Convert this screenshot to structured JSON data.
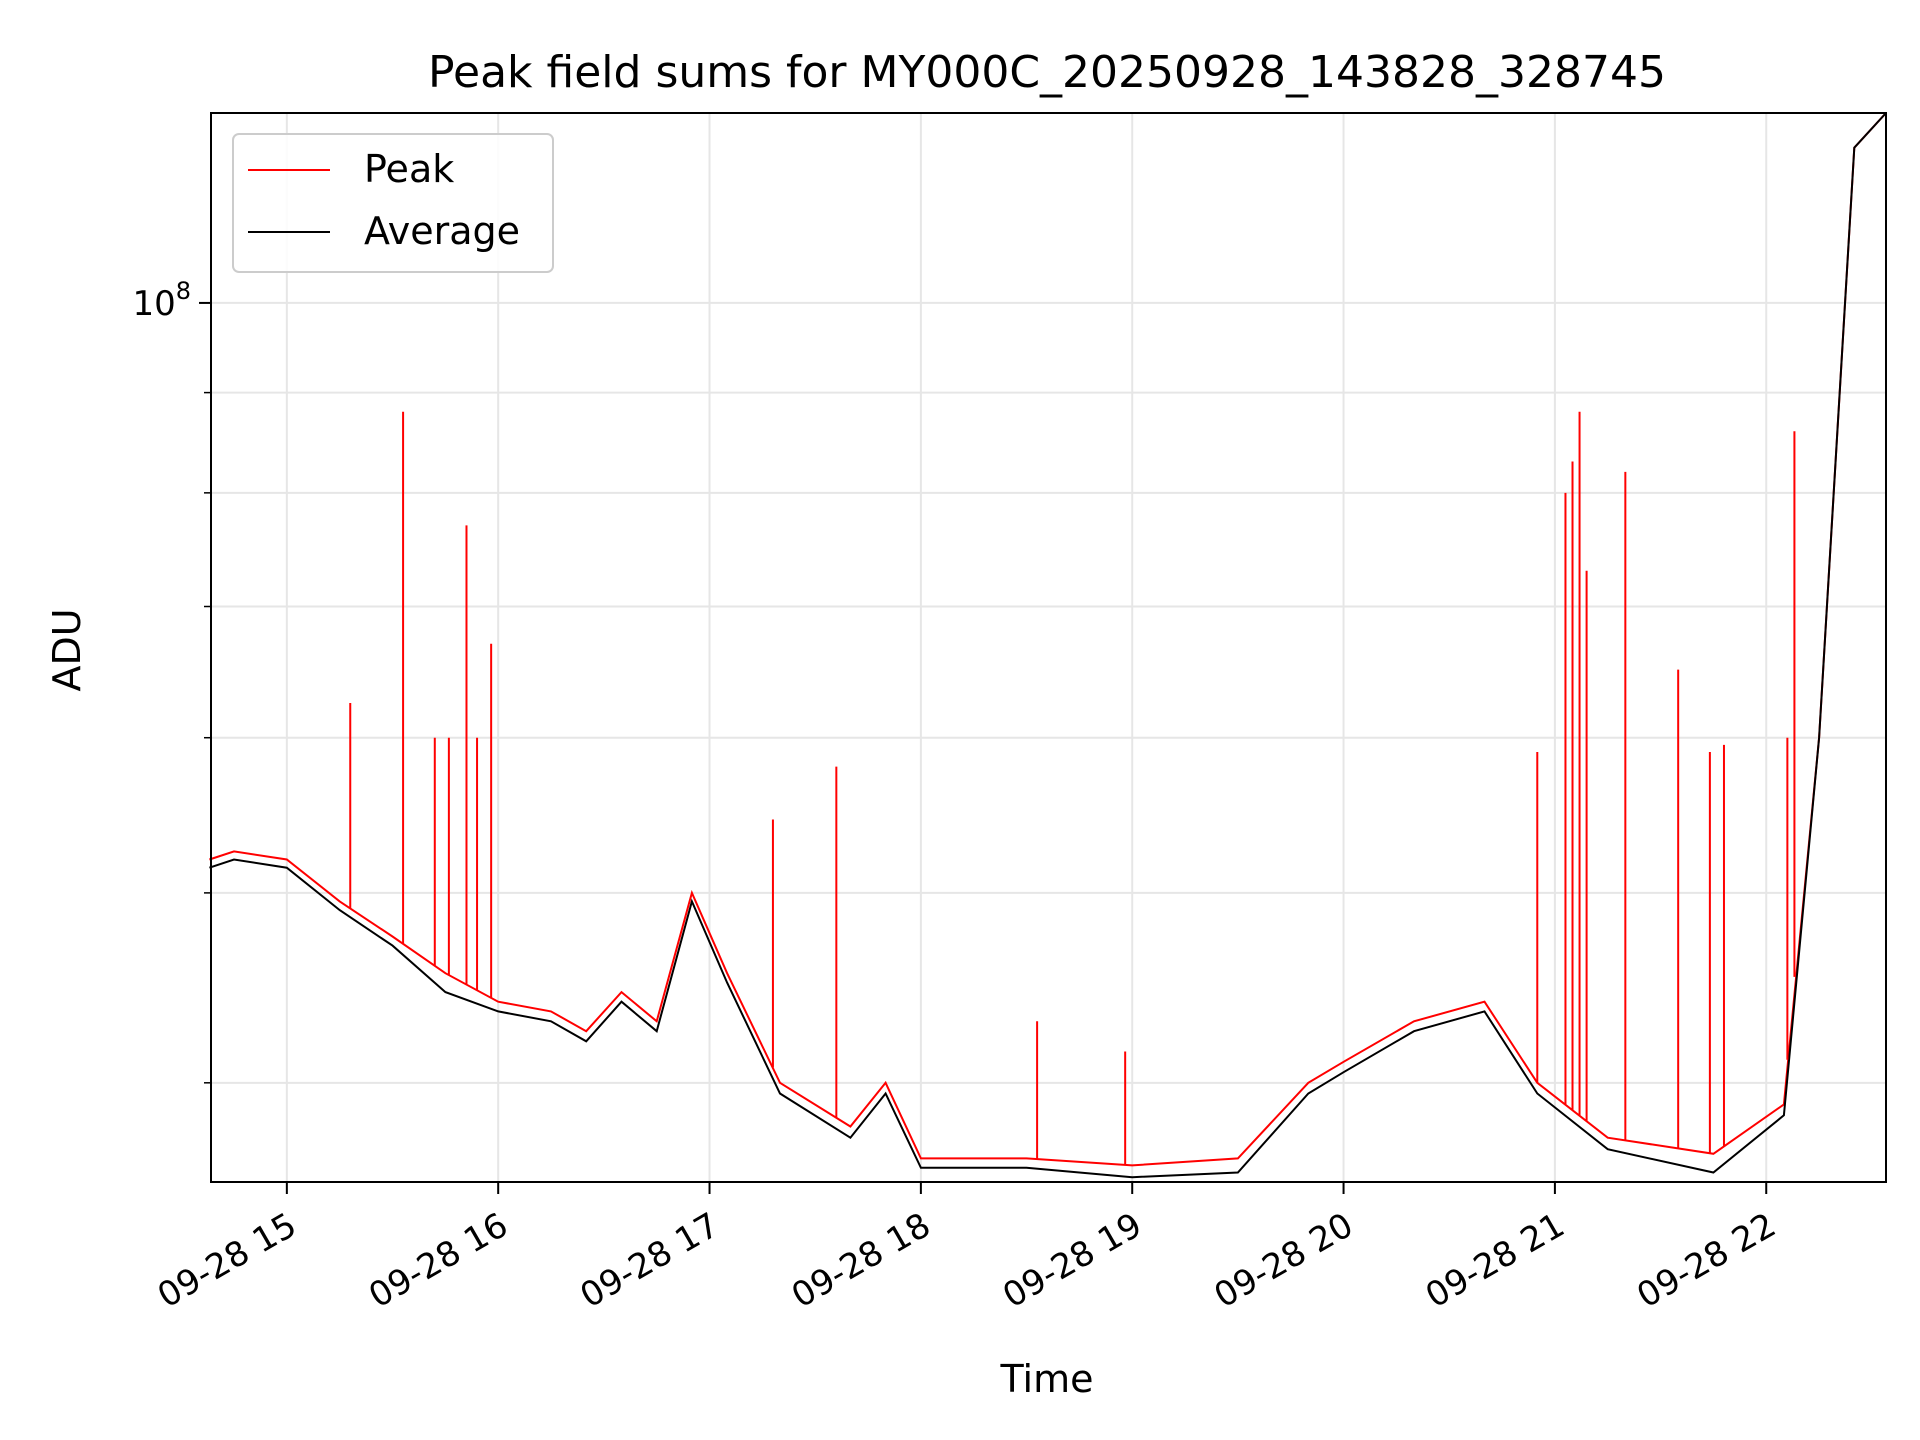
{
  "chart_data": {
    "type": "line",
    "title": "Peak field sums for MY000C_20250928_143828_328745",
    "xlabel": "Time",
    "ylabel": "ADU",
    "yscale": "log",
    "xlim": [
      "2025-09-28T14:38:28",
      "2025-09-28T22:34:00"
    ],
    "ylim": [
      35600000.0,
      125000000.0
    ],
    "grid": true,
    "legend_position": "top-left",
    "x_ticks": [
      {
        "value": "2025-09-28T15:00",
        "label": "09-28 15"
      },
      {
        "value": "2025-09-28T16:00",
        "label": "09-28 16"
      },
      {
        "value": "2025-09-28T17:00",
        "label": "09-28 17"
      },
      {
        "value": "2025-09-28T18:00",
        "label": "09-28 18"
      },
      {
        "value": "2025-09-28T19:00",
        "label": "09-28 19"
      },
      {
        "value": "2025-09-28T20:00",
        "label": "09-28 20"
      },
      {
        "value": "2025-09-28T21:00",
        "label": "09-28 21"
      },
      {
        "value": "2025-09-28T22:00",
        "label": "09-28 22"
      }
    ],
    "y_ticks": [
      {
        "value": 100000000,
        "label": "10",
        "exponent": "8"
      }
    ],
    "series": [
      {
        "name": "Peak",
        "color": "#ff0000",
        "points": [
          [
            "2025-09-28T14:38",
            52000000.0
          ],
          [
            "2025-09-28T14:45",
            52500000.0
          ],
          [
            "2025-09-28T15:00",
            52000000.0
          ],
          [
            "2025-09-28T15:15",
            49500000.0
          ],
          [
            "2025-09-28T15:30",
            47500000.0
          ],
          [
            "2025-09-28T15:45",
            45500000.0
          ],
          [
            "2025-09-28T16:00",
            44000000.0
          ],
          [
            "2025-09-28T16:15",
            43500000.0
          ],
          [
            "2025-09-28T16:25",
            42500000.0
          ],
          [
            "2025-09-28T16:35",
            44500000.0
          ],
          [
            "2025-09-28T16:45",
            43000000.0
          ],
          [
            "2025-09-28T16:55",
            50000000.0
          ],
          [
            "2025-09-28T17:05",
            45500000.0
          ],
          [
            "2025-09-28T17:20",
            40000000.0
          ],
          [
            "2025-09-28T17:40",
            38000000.0
          ],
          [
            "2025-09-28T17:50",
            40000000.0
          ],
          [
            "2025-09-28T18:00",
            36600000.0
          ],
          [
            "2025-09-28T18:30",
            36600000.0
          ],
          [
            "2025-09-28T19:00",
            36300000.0
          ],
          [
            "2025-09-28T19:30",
            36600000.0
          ],
          [
            "2025-09-28T19:50",
            40000000.0
          ],
          [
            "2025-09-28T20:00",
            41000000.0
          ],
          [
            "2025-09-28T20:20",
            43000000.0
          ],
          [
            "2025-09-28T20:40",
            44000000.0
          ],
          [
            "2025-09-28T20:55",
            40000000.0
          ],
          [
            "2025-09-28T21:15",
            37500000.0
          ],
          [
            "2025-09-28T21:45",
            36800000.0
          ],
          [
            "2025-09-28T22:05",
            39000000.0
          ],
          [
            "2025-09-28T22:15",
            60000000.0
          ],
          [
            "2025-09-28T22:25",
            120000000.0
          ],
          [
            "2025-09-28T22:34",
            125000000.0
          ]
        ],
        "spikes": [
          [
            "2025-09-28T15:33",
            88000000.0
          ],
          [
            "2025-09-28T15:51",
            77000000.0
          ],
          [
            "2025-09-28T15:58",
            67000000.0
          ],
          [
            "2025-09-28T15:18",
            62500000.0
          ],
          [
            "2025-09-28T15:42",
            60000000.0
          ],
          [
            "2025-09-28T15:46",
            60000000.0
          ],
          [
            "2025-09-28T15:54",
            60000000.0
          ],
          [
            "2025-09-28T17:36",
            58000000.0
          ],
          [
            "2025-09-28T17:18",
            54500000.0
          ],
          [
            "2025-09-28T18:33",
            43000000.0
          ],
          [
            "2025-09-28T18:58",
            41500000.0
          ],
          [
            "2025-09-28T20:55",
            59000000.0
          ],
          [
            "2025-09-28T21:03",
            80000000.0
          ],
          [
            "2025-09-28T21:05",
            83000000.0
          ],
          [
            "2025-09-28T21:07",
            88000000.0
          ],
          [
            "2025-09-28T21:09",
            73000000.0
          ],
          [
            "2025-09-28T21:20",
            82000000.0
          ],
          [
            "2025-09-28T21:35",
            65000000.0
          ],
          [
            "2025-09-28T21:44",
            59000000.0
          ],
          [
            "2025-09-28T21:48",
            59500000.0
          ],
          [
            "2025-09-28T22:06",
            60000000.0
          ],
          [
            "2025-09-28T22:08",
            86000000.0
          ]
        ]
      },
      {
        "name": "Average",
        "color": "#000000",
        "points": [
          [
            "2025-09-28T14:38",
            51500000.0
          ],
          [
            "2025-09-28T14:45",
            52000000.0
          ],
          [
            "2025-09-28T15:00",
            51500000.0
          ],
          [
            "2025-09-28T15:15",
            49000000.0
          ],
          [
            "2025-09-28T15:30",
            47000000.0
          ],
          [
            "2025-09-28T15:45",
            44500000.0
          ],
          [
            "2025-09-28T16:00",
            43500000.0
          ],
          [
            "2025-09-28T16:15",
            43000000.0
          ],
          [
            "2025-09-28T16:25",
            42000000.0
          ],
          [
            "2025-09-28T16:35",
            44000000.0
          ],
          [
            "2025-09-28T16:45",
            42500000.0
          ],
          [
            "2025-09-28T16:55",
            49500000.0
          ],
          [
            "2025-09-28T17:05",
            45000000.0
          ],
          [
            "2025-09-28T17:20",
            39500000.0
          ],
          [
            "2025-09-28T17:40",
            37500000.0
          ],
          [
            "2025-09-28T17:50",
            39500000.0
          ],
          [
            "2025-09-28T18:00",
            36200000.0
          ],
          [
            "2025-09-28T18:30",
            36200000.0
          ],
          [
            "2025-09-28T19:00",
            35800000.0
          ],
          [
            "2025-09-28T19:30",
            36000000.0
          ],
          [
            "2025-09-28T19:50",
            39500000.0
          ],
          [
            "2025-09-28T20:00",
            40500000.0
          ],
          [
            "2025-09-28T20:20",
            42500000.0
          ],
          [
            "2025-09-28T20:40",
            43500000.0
          ],
          [
            "2025-09-28T20:55",
            39500000.0
          ],
          [
            "2025-09-28T21:15",
            37000000.0
          ],
          [
            "2025-09-28T21:45",
            36000000.0
          ],
          [
            "2025-09-28T22:05",
            38500000.0
          ],
          [
            "2025-09-28T22:15",
            60000000.0
          ],
          [
            "2025-09-28T22:25",
            120000000.0
          ],
          [
            "2025-09-28T22:34",
            125000000.0
          ]
        ]
      }
    ]
  }
}
